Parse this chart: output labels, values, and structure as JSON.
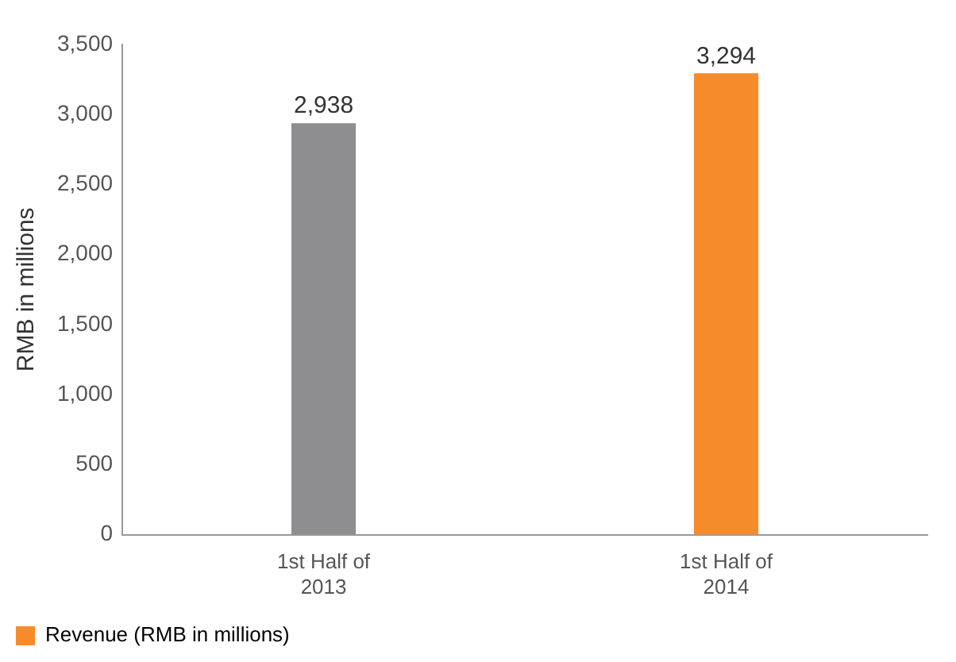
{
  "chart_data": {
    "type": "bar",
    "ylabel": "RMB in millions",
    "categories": [
      "1st Half of 2013",
      "1st Half of 2014"
    ],
    "series": [
      {
        "name": "Revenue (RMB in millions)",
        "color": "#f68b2c",
        "colors": [
          "#8e8e90",
          "#f68b2c"
        ],
        "values": [
          2938,
          3294
        ],
        "value_labels": [
          "2,938",
          "3,294"
        ]
      }
    ],
    "ylim": [
      0,
      3500
    ],
    "yticks": [
      0,
      500,
      {
        "value": 1000,
        "label": "1,000"
      },
      {
        "value": 1500,
        "label": "1,500"
      },
      {
        "value": 2000,
        "label": "2,000"
      },
      {
        "value": 2500,
        "label": "2,500"
      },
      {
        "value": 3000,
        "label": "3,000"
      },
      {
        "value": 3500,
        "label": "3,500"
      }
    ],
    "grid": false,
    "legend": "bottom left"
  }
}
